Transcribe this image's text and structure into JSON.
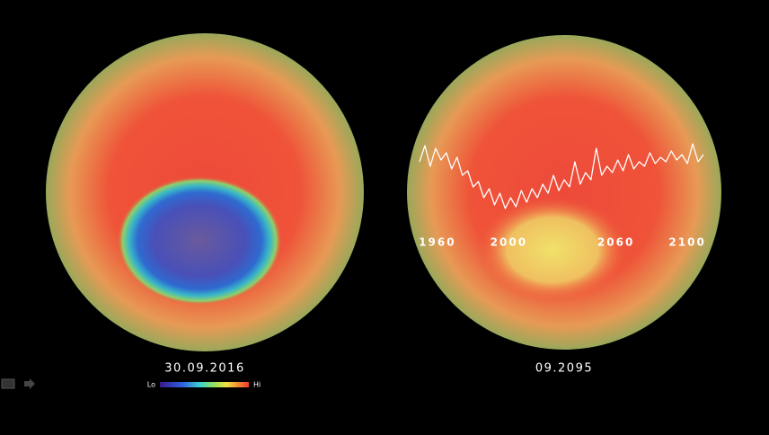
{
  "left_panel": {
    "date": "30.09.2016",
    "legend": {
      "low": "Lo",
      "high": "Hi"
    }
  },
  "right_panel": {
    "date": "09.2095"
  },
  "chart_data": {
    "type": "line",
    "color": "#ffffff",
    "x": [
      1950,
      1953,
      1956,
      1959,
      1962,
      1965,
      1968,
      1971,
      1974,
      1977,
      1980,
      1983,
      1986,
      1989,
      1992,
      1995,
      1998,
      2001,
      2004,
      2007,
      2010,
      2013,
      2016,
      2019,
      2022,
      2025,
      2028,
      2031,
      2034,
      2037,
      2040,
      2043,
      2046,
      2049,
      2052,
      2055,
      2058,
      2061,
      2064,
      2067,
      2070,
      2073,
      2076,
      2079,
      2082,
      2085,
      2088,
      2091,
      2094,
      2097,
      2100,
      2103,
      2106,
      2109
    ],
    "values": [
      70,
      88,
      65,
      85,
      72,
      80,
      62,
      75,
      55,
      60,
      42,
      48,
      30,
      40,
      22,
      35,
      18,
      30,
      20,
      38,
      25,
      40,
      30,
      45,
      35,
      55,
      38,
      50,
      42,
      70,
      45,
      58,
      50,
      85,
      55,
      65,
      58,
      72,
      60,
      78,
      62,
      70,
      65,
      80,
      68,
      75,
      70,
      82,
      72,
      78,
      68,
      90,
      70,
      78
    ],
    "xlim": [
      1950,
      2110
    ],
    "xticks": [
      1960,
      2000,
      2060,
      2100
    ],
    "ylim": [
      0,
      100
    ]
  }
}
